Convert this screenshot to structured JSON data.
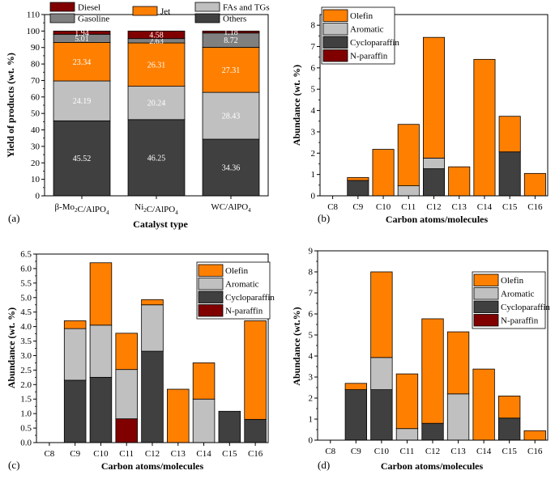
{
  "colors": {
    "olefin": "#ff8000",
    "aromatic": "#c0c0c0",
    "cycloparaffin": "#404040",
    "nparaffin": "#800000",
    "others": "#404040",
    "fas": "#c0c0c0",
    "jet": "#ff8000",
    "gasoline": "#808080",
    "diesel": "#800000"
  },
  "chart_data": [
    {
      "panel": "(a)",
      "type": "bar",
      "stacked": true,
      "title": "",
      "xlabel": "Catalyst type",
      "ylabel": "Yield of products (wt. %)",
      "ylim": [
        0,
        110
      ],
      "yticks": [
        "0",
        "10",
        "20",
        "30",
        "40",
        "50",
        "60",
        "70",
        "80",
        "90",
        "100",
        "110"
      ],
      "grid": false,
      "categories": [
        {
          "prefix": "β-Mo",
          "sub1": "2",
          "mid": "C/AlPO",
          "sub2": "4"
        },
        {
          "prefix": "Ni",
          "sub1": "2",
          "mid": "C/AlPO",
          "sub2": "4"
        },
        {
          "prefix": "WC/AlPO",
          "sub1": "",
          "mid": "",
          "sub2": "4"
        }
      ],
      "series": [
        {
          "name": "Others",
          "key": "others",
          "values": [
            45.52,
            46.25,
            34.36
          ],
          "labels": [
            "45.52",
            "46.25",
            "34.36"
          ]
        },
        {
          "name": "FAs and TGs",
          "key": "fas",
          "values": [
            24.19,
            20.24,
            28.43
          ],
          "labels": [
            "24.19",
            "20.24",
            "28.43"
          ]
        },
        {
          "name": "Jet",
          "key": "jet",
          "values": [
            23.34,
            26.31,
            27.31
          ],
          "labels": [
            "23.34",
            "26.31",
            "27.31"
          ]
        },
        {
          "name": "Gasoline",
          "key": "gasoline",
          "values": [
            5.01,
            2.63,
            8.72
          ],
          "labels": [
            "5.01",
            "2.63",
            "8.72"
          ]
        },
        {
          "name": "Diesel",
          "key": "diesel",
          "values": [
            1.94,
            4.58,
            1.18
          ],
          "labels": [
            "1.94",
            "4.58",
            "1.18"
          ]
        }
      ]
    },
    {
      "panel": "(b)",
      "type": "bar",
      "stacked": true,
      "title": "",
      "xlabel": "Carbon atoms/molecules",
      "ylabel": "Abundance (wt. %)",
      "ylim": [
        0,
        8.5
      ],
      "yticks": [
        "0",
        "1",
        "2",
        "3",
        "4",
        "5",
        "6",
        "7",
        "8"
      ],
      "grid": false,
      "categories": [
        "C8",
        "C9",
        "C10",
        "C11",
        "C12",
        "C13",
        "C14",
        "C15",
        "C16"
      ],
      "legend": [
        "Olefin",
        "Aromatic",
        "Cycloparaffin",
        "N-paraffin"
      ],
      "series": [
        {
          "name": "N-paraffin",
          "key": "nparaffin",
          "values": [
            0,
            0,
            0,
            0,
            0,
            0,
            0,
            0,
            0
          ]
        },
        {
          "name": "Cycloparaffin",
          "key": "cycloparaffin",
          "values": [
            0,
            0.72,
            0,
            0,
            1.27,
            0,
            0,
            2.06,
            0
          ]
        },
        {
          "name": "Aromatic",
          "key": "aromatic",
          "values": [
            0,
            0,
            0,
            0.47,
            0.5,
            0,
            0,
            0,
            0
          ]
        },
        {
          "name": "Olefin",
          "key": "olefin",
          "values": [
            0,
            0.14,
            2.18,
            2.88,
            5.66,
            1.36,
            6.4,
            1.67,
            1.05
          ]
        }
      ]
    },
    {
      "panel": "(c)",
      "type": "bar",
      "stacked": true,
      "title": "",
      "xlabel": "Carbon atoms/molecules",
      "ylabel": "Abundance (wt. %)",
      "ylim": [
        0,
        6.5
      ],
      "yticks": [
        "0.0",
        "0.5",
        "1.0",
        "1.5",
        "2.0",
        "2.5",
        "3.0",
        "3.5",
        "4.0",
        "4.5",
        "5.0",
        "5.5",
        "6.0",
        "6.5"
      ],
      "grid": false,
      "categories": [
        "C8",
        "C9",
        "C10",
        "C11",
        "C12",
        "C13",
        "C14",
        "C15",
        "C16"
      ],
      "legend": [
        "Olefin",
        "Aromatic",
        "Cycloparaffin",
        "N-paraffin"
      ],
      "series": [
        {
          "name": "N-paraffin",
          "key": "nparaffin",
          "values": [
            0,
            0,
            0,
            0.82,
            0,
            0,
            0,
            0,
            0
          ]
        },
        {
          "name": "Cycloparaffin",
          "key": "cycloparaffin",
          "values": [
            0,
            2.15,
            2.25,
            0,
            3.15,
            0,
            0,
            1.08,
            0.8
          ]
        },
        {
          "name": "Aromatic",
          "key": "aromatic",
          "values": [
            0,
            1.78,
            1.8,
            1.7,
            1.6,
            0,
            1.5,
            0,
            0
          ]
        },
        {
          "name": "Olefin",
          "key": "olefin",
          "values": [
            0,
            0.27,
            2.15,
            1.25,
            0.18,
            1.84,
            1.25,
            0,
            3.4
          ]
        }
      ]
    },
    {
      "panel": "(d)",
      "type": "bar",
      "stacked": true,
      "title": "",
      "xlabel": "Carbon atoms/molecules",
      "ylabel": "Abundance (wt.%)",
      "ylim": [
        0,
        9
      ],
      "yticks": [
        "0",
        "1",
        "2",
        "3",
        "4",
        "5",
        "6",
        "7",
        "8",
        "9"
      ],
      "grid": false,
      "categories": [
        "C8",
        "C9",
        "C10",
        "C11",
        "C12",
        "C13",
        "C14",
        "C15",
        "C16"
      ],
      "legend": [
        "Olefin",
        "Aromatic",
        "Cycloparaffin",
        "N-paraffin"
      ],
      "series": [
        {
          "name": "N-paraffin",
          "key": "nparaffin",
          "values": [
            0,
            0,
            0,
            0,
            0,
            0,
            0,
            0,
            0
          ]
        },
        {
          "name": "Cycloparaffin",
          "key": "cycloparaffin",
          "values": [
            0,
            2.4,
            2.4,
            0,
            0.8,
            0,
            0,
            1.05,
            0
          ]
        },
        {
          "name": "Aromatic",
          "key": "aromatic",
          "values": [
            0,
            0,
            1.53,
            0.55,
            0,
            2.2,
            0,
            0,
            0
          ]
        },
        {
          "name": "Olefin",
          "key": "olefin",
          "values": [
            0,
            0.3,
            4.07,
            2.6,
            4.97,
            2.95,
            3.38,
            1.05,
            0.45
          ]
        }
      ]
    }
  ]
}
